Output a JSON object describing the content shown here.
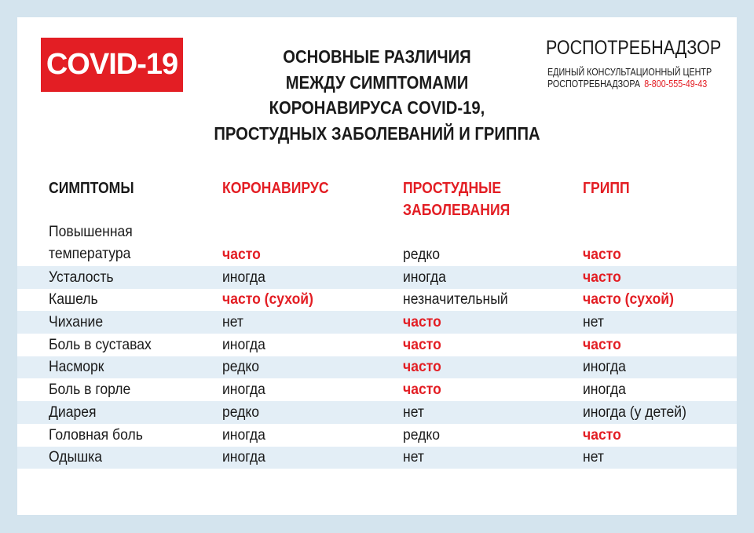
{
  "badge": "COVID-19",
  "title": [
    "ОСНОВНЫЕ РАЗЛИЧИЯ",
    "МЕЖДУ СИМПТОМАМИ",
    "КОРОНАВИРУСА COVID-19,",
    "ПРОСТУДНЫХ ЗАБОЛЕВАНИЙ И ГРИППА"
  ],
  "org": {
    "name": "РОСПОТРЕБНАДЗОР",
    "line1": "ЕДИНЫЙ КОНСУЛЬТАЦИОННЫЙ ЦЕНТР",
    "line2": "РОСПОТРЕБНАДЗОРА",
    "phone": "8-800-555-49-43"
  },
  "colors": {
    "accent": "#e31e24",
    "stripe": "#e3eef6",
    "background": "#d4e4ee"
  },
  "table": {
    "headers": [
      "СИМПТОМЫ",
      "КОРОНАВИРУС",
      "ПРОСТУДНЫЕ ЗАБОЛЕВАНИЯ",
      "ГРИПП"
    ],
    "rows": [
      {
        "cells": [
          "Повышенная температура",
          "часто",
          "редко",
          "часто"
        ],
        "highlight": [
          false,
          true,
          false,
          true
        ]
      },
      {
        "cells": [
          "Усталость",
          "иногда",
          "иногда",
          "часто"
        ],
        "highlight": [
          false,
          false,
          false,
          true
        ]
      },
      {
        "cells": [
          "Кашель",
          "часто (сухой)",
          "незначительный",
          "часто (сухой)"
        ],
        "highlight": [
          false,
          true,
          false,
          true
        ]
      },
      {
        "cells": [
          "Чихание",
          "нет",
          "часто",
          "нет"
        ],
        "highlight": [
          false,
          false,
          true,
          false
        ]
      },
      {
        "cells": [
          "Боль в суставах",
          "иногда",
          "часто",
          "часто"
        ],
        "highlight": [
          false,
          false,
          true,
          true
        ]
      },
      {
        "cells": [
          "Насморк",
          "редко",
          "часто",
          "иногда"
        ],
        "highlight": [
          false,
          false,
          true,
          false
        ]
      },
      {
        "cells": [
          "Боль в горле",
          "иногда",
          "часто",
          "иногда"
        ],
        "highlight": [
          false,
          false,
          true,
          false
        ]
      },
      {
        "cells": [
          "Диарея",
          "редко",
          "нет",
          "иногда (у детей)"
        ],
        "highlight": [
          false,
          false,
          false,
          false
        ]
      },
      {
        "cells": [
          "Головная боль",
          "иногда",
          "редко",
          "часто"
        ],
        "highlight": [
          false,
          false,
          false,
          true
        ]
      },
      {
        "cells": [
          "Одышка",
          "иногда",
          "нет",
          "нет"
        ],
        "highlight": [
          false,
          false,
          false,
          false
        ]
      }
    ]
  }
}
